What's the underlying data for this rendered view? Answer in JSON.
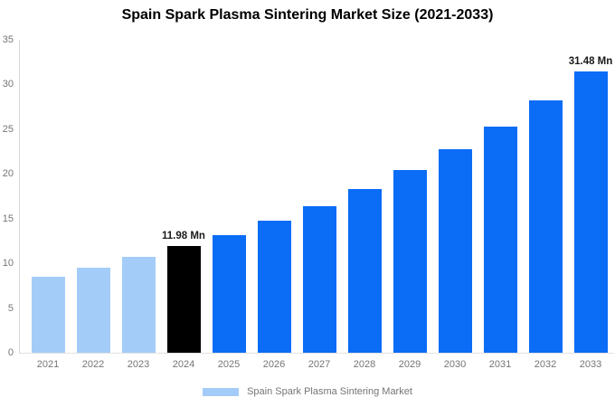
{
  "title": "Spain Spark Plasma Sintering Market Size (2021-2033)",
  "chart_data": {
    "type": "bar",
    "title": "Spain Spark Plasma Sintering Market Size (2021-2033)",
    "categories": [
      "2021",
      "2022",
      "2023",
      "2024",
      "2025",
      "2026",
      "2027",
      "2028",
      "2029",
      "2030",
      "2031",
      "2032",
      "2033"
    ],
    "values": [
      8.5,
      9.55,
      10.7,
      11.98,
      13.2,
      14.8,
      16.4,
      18.3,
      20.4,
      22.75,
      25.3,
      28.2,
      31.48
    ],
    "unit": "Mn",
    "ylim": [
      0,
      35
    ],
    "yticks": [
      0,
      5,
      10,
      15,
      20,
      25,
      30,
      35
    ],
    "grid": false,
    "bar_colors": {
      "historical": "#a4ccf8",
      "base_year": "#000000",
      "forecast": "#0b6cf6"
    },
    "color_map": [
      "historical",
      "historical",
      "historical",
      "base_year",
      "forecast",
      "forecast",
      "forecast",
      "forecast",
      "forecast",
      "forecast",
      "forecast",
      "forecast",
      "forecast"
    ],
    "annotations": [
      {
        "category": "2024",
        "text": "11.98 Mn"
      },
      {
        "category": "2033",
        "text": "31.48 Mn"
      }
    ],
    "legend_position": "bottom",
    "legend": [
      {
        "label": "Spain Spark Plasma Sintering Market",
        "color": "#a4ccf8"
      }
    ],
    "axis_text_color": "#757575",
    "background": "#ffffff"
  }
}
